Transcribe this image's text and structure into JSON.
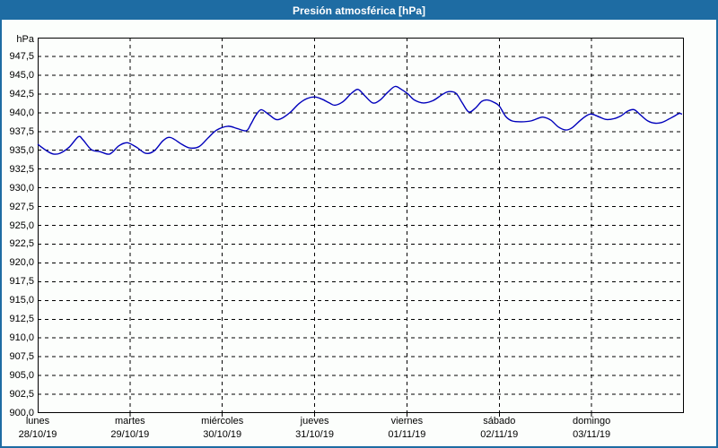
{
  "window": {
    "title": "Presión atmosférica [hPa]"
  },
  "colors": {
    "titlebar_bg": "#1E6CA3",
    "titlebar_text": "#FFFFFF",
    "outer_border": "#1E6CA3",
    "background": "#FCFEFC",
    "plot_frame": "#000000",
    "gridline": "#000000",
    "line": "#0000BB"
  },
  "chart_data": {
    "type": "line",
    "title": "Presión atmosférica [hPa]",
    "xlabel": "",
    "ylabel": "hPa",
    "ylim": [
      900,
      950
    ],
    "grid_step": 2.5,
    "grid": true,
    "legend": "none",
    "y_ticks": [
      947.5,
      945.0,
      942.5,
      940.0,
      937.5,
      935.0,
      932.5,
      930.0,
      927.5,
      925.0,
      922.5,
      920.0,
      917.5,
      915.0,
      912.5,
      910.0,
      907.5,
      905.0,
      902.5,
      900.0
    ],
    "y_tick_labels": [
      "947,5",
      "945,0",
      "942,5",
      "940,0",
      "937,5",
      "935,0",
      "932,5",
      "930,0",
      "927,5",
      "925,0",
      "922,5",
      "920,0",
      "917,5",
      "915,0",
      "912,5",
      "910,0",
      "907,5",
      "905,0",
      "902,5",
      "900,0"
    ],
    "x_categories": [
      {
        "day": "lunes",
        "date": "28/10/19"
      },
      {
        "day": "martes",
        "date": "29/10/19"
      },
      {
        "day": "miércoles",
        "date": "30/10/19"
      },
      {
        "day": "jueves",
        "date": "31/10/19"
      },
      {
        "day": "viernes",
        "date": "01/11/19"
      },
      {
        "day": "sábado",
        "date": "02/11/19"
      },
      {
        "day": "domingo",
        "date": "03/11/19"
      }
    ],
    "series": [
      {
        "name": "Presión atmosférica",
        "color": "#0000BB",
        "points": [
          [
            0.0,
            935.8
          ],
          [
            0.1,
            934.9
          ],
          [
            0.17,
            934.5
          ],
          [
            0.24,
            934.6
          ],
          [
            0.34,
            935.4
          ],
          [
            0.44,
            936.8
          ],
          [
            0.49,
            936.4
          ],
          [
            0.58,
            935.1
          ],
          [
            0.68,
            934.8
          ],
          [
            0.78,
            934.5
          ],
          [
            0.88,
            935.6
          ],
          [
            0.97,
            936.0
          ],
          [
            1.07,
            935.4
          ],
          [
            1.17,
            934.6
          ],
          [
            1.26,
            934.9
          ],
          [
            1.36,
            936.3
          ],
          [
            1.44,
            936.7
          ],
          [
            1.56,
            935.8
          ],
          [
            1.65,
            935.3
          ],
          [
            1.75,
            935.5
          ],
          [
            1.85,
            936.7
          ],
          [
            1.94,
            937.7
          ],
          [
            2.06,
            938.2
          ],
          [
            2.16,
            937.9
          ],
          [
            2.26,
            937.6
          ],
          [
            2.31,
            938.5
          ],
          [
            2.36,
            939.6
          ],
          [
            2.42,
            940.4
          ],
          [
            2.5,
            939.8
          ],
          [
            2.58,
            939.1
          ],
          [
            2.65,
            939.3
          ],
          [
            2.74,
            940.1
          ],
          [
            2.83,
            941.2
          ],
          [
            2.92,
            941.9
          ],
          [
            3.0,
            942.1
          ],
          [
            3.08,
            941.8
          ],
          [
            3.16,
            941.3
          ],
          [
            3.22,
            941.0
          ],
          [
            3.31,
            941.5
          ],
          [
            3.4,
            942.6
          ],
          [
            3.47,
            943.1
          ],
          [
            3.54,
            942.3
          ],
          [
            3.63,
            941.3
          ],
          [
            3.71,
            941.7
          ],
          [
            3.79,
            942.7
          ],
          [
            3.87,
            943.5
          ],
          [
            3.94,
            943.1
          ],
          [
            4.01,
            942.5
          ],
          [
            4.08,
            941.7
          ],
          [
            4.18,
            941.3
          ],
          [
            4.28,
            941.6
          ],
          [
            4.38,
            942.4
          ],
          [
            4.45,
            942.8
          ],
          [
            4.53,
            942.6
          ],
          [
            4.6,
            941.3
          ],
          [
            4.67,
            940.1
          ],
          [
            4.74,
            940.6
          ],
          [
            4.81,
            941.5
          ],
          [
            4.87,
            941.7
          ],
          [
            4.94,
            941.4
          ],
          [
            5.0,
            940.9
          ],
          [
            5.07,
            939.5
          ],
          [
            5.14,
            938.9
          ],
          [
            5.24,
            938.8
          ],
          [
            5.34,
            938.9
          ],
          [
            5.43,
            939.3
          ],
          [
            5.48,
            939.4
          ],
          [
            5.56,
            939.0
          ],
          [
            5.64,
            938.1
          ],
          [
            5.72,
            937.7
          ],
          [
            5.79,
            938.0
          ],
          [
            5.88,
            939.0
          ],
          [
            5.96,
            939.7
          ],
          [
            6.01,
            939.8
          ],
          [
            6.09,
            939.4
          ],
          [
            6.16,
            939.1
          ],
          [
            6.24,
            939.2
          ],
          [
            6.32,
            939.6
          ],
          [
            6.39,
            940.2
          ],
          [
            6.46,
            940.4
          ],
          [
            6.53,
            939.7
          ],
          [
            6.61,
            938.9
          ],
          [
            6.69,
            938.6
          ],
          [
            6.76,
            938.7
          ],
          [
            6.83,
            939.1
          ],
          [
            6.89,
            939.5
          ],
          [
            6.95,
            939.9
          ],
          [
            6.98,
            939.8
          ]
        ]
      }
    ]
  }
}
